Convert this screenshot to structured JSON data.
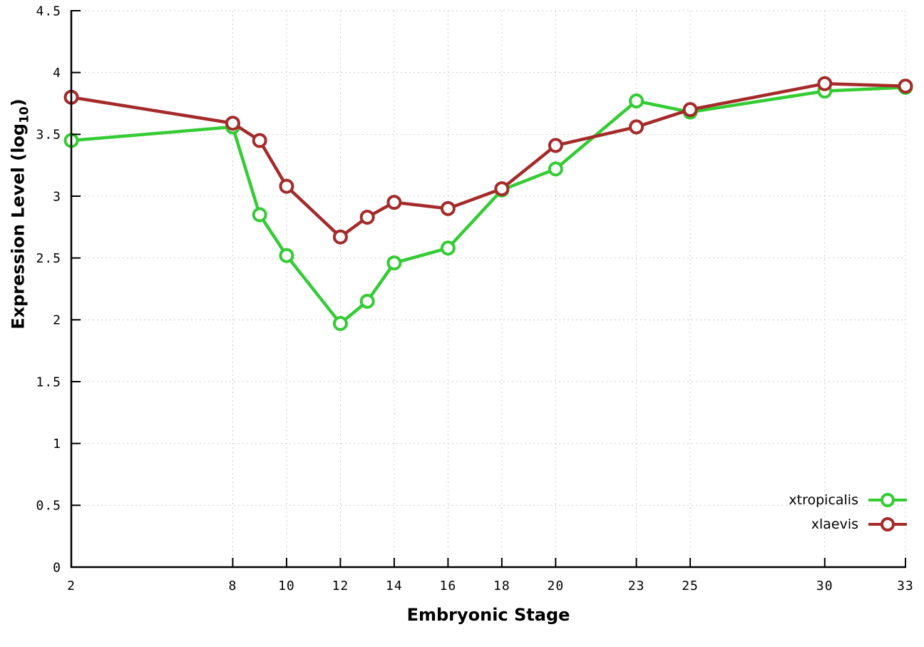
{
  "chart_data": {
    "type": "line",
    "x": [
      2,
      8,
      9,
      10,
      12,
      13,
      14,
      16,
      18,
      20,
      23,
      25,
      30,
      33
    ],
    "series": [
      {
        "name": "xtropicalis",
        "color": "#33cc33",
        "values": [
          3.45,
          3.56,
          2.85,
          2.52,
          1.97,
          2.15,
          2.46,
          2.58,
          3.05,
          3.22,
          3.77,
          3.68,
          3.85,
          3.88
        ]
      },
      {
        "name": "xlaevis",
        "color": "#a52a2a",
        "values": [
          3.8,
          3.59,
          3.45,
          3.08,
          2.67,
          2.83,
          2.95,
          2.9,
          3.06,
          3.41,
          3.56,
          3.7,
          3.91,
          3.89
        ]
      }
    ],
    "xlabel": "Embryonic Stage",
    "ylabel_prefix": "Expression Level (log",
    "ylabel_sub": "10",
    "ylabel_suffix": ")",
    "xlim": [
      2,
      33
    ],
    "ylim": [
      0,
      4.5
    ],
    "xticks": {
      "values": [
        2,
        8,
        10,
        12,
        14,
        16,
        18,
        20,
        23,
        25,
        30,
        33
      ],
      "labels": [
        "2",
        "8",
        "10",
        "12",
        "14",
        "16",
        "18",
        "20",
        "23",
        "25",
        "30",
        "33"
      ]
    },
    "yticks": {
      "values": [
        0,
        0.5,
        1,
        1.5,
        2,
        2.5,
        3,
        3.5,
        4,
        4.5
      ],
      "labels": [
        "0",
        "0.5",
        "1",
        "1.5",
        "2",
        "2.5",
        "3",
        "3.5",
        "4",
        "4.5"
      ]
    },
    "grid": true,
    "legend_position": "bottom-right"
  },
  "colors": {
    "axis": "#000000",
    "grid": "#cccccc",
    "background": "#ffffff",
    "marker_fill": "#ffffff"
  }
}
